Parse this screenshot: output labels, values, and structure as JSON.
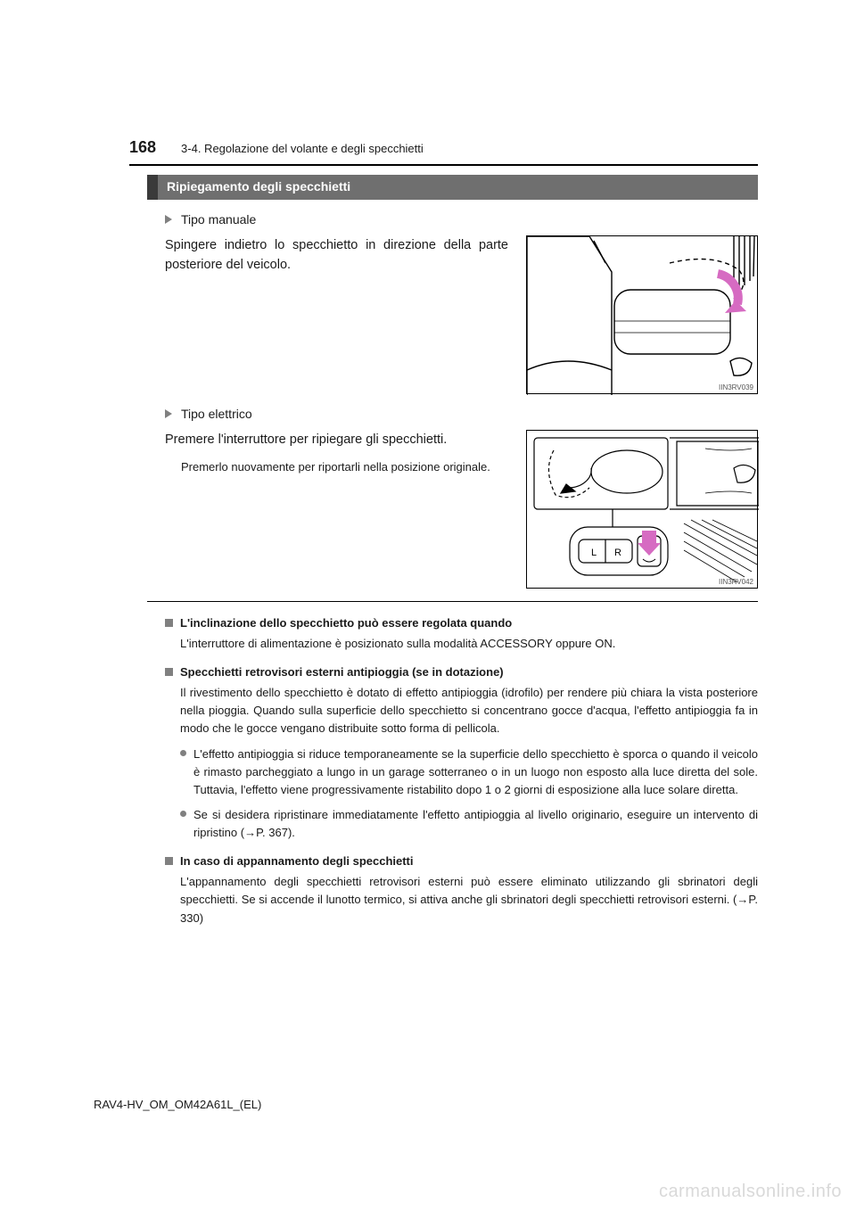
{
  "page": {
    "number": "168",
    "section_path": "3-4. Regolazione del volante e degli specchietti",
    "footer_code": "RAV4-HV_OM_OM42A61L_(EL)",
    "watermark": "carmanualsonline.info"
  },
  "heading": {
    "title": "Ripiegamento degli specchietti"
  },
  "block1": {
    "type_label": "Tipo manuale",
    "text": "Spingere indietro lo specchietto in direzione della parte posteriore del veicolo.",
    "fig_code": "IIN3RV039"
  },
  "block2": {
    "type_label": "Tipo elettrico",
    "text": "Premere l'interruttore per ripiegare gli specchietti.",
    "subtext": "Premerlo nuovamente per riportarli nella posizione originale.",
    "fig_code": "IIN3RV042"
  },
  "notes": [
    {
      "title": "L'inclinazione dello specchietto può essere regolata quando",
      "body": "L'interruttore di alimentazione è posizionato sulla modalità ACCESSORY oppure ON.",
      "bullets": []
    },
    {
      "title": "Specchietti retrovisori esterni antipioggia (se in dotazione)",
      "body": "Il rivestimento dello specchietto è dotato di effetto antipioggia (idrofilo) per rendere più chiara la vista posteriore nella pioggia. Quando sulla superficie dello specchietto si concentrano gocce d'acqua, l'effetto antipioggia fa in modo che le gocce vengano distribuite sotto forma di pellicola.",
      "bullets": [
        "L'effetto antipioggia si riduce temporaneamente se la superficie dello specchietto è sporca o quando il veicolo è rimasto parcheggiato a lungo in un garage sotterraneo o in un luogo non esposto alla luce diretta del sole. Tuttavia, l'effetto viene progressivamente ristabilito dopo 1 o 2 giorni di esposizione alla luce solare diretta.",
        "Se si desidera ripristinare immediatamente l'effetto antipioggia al livello originario, eseguire un intervento di ripristino (→P. 367)."
      ]
    },
    {
      "title": "In caso di appannamento degli specchietti",
      "body": "L'appannamento degli specchietti retrovisori esterni può essere eliminato utilizzando gli sbrinatori degli specchietti. Se si accende il lunotto termico, si attiva anche gli sbrinatori degli specchietti retrovisori esterni. (→P. 330)",
      "bullets": []
    }
  ],
  "figures": {
    "fig1": {
      "arrow_color": "#d66bc2",
      "line_color": "#000000"
    },
    "fig2": {
      "arrow_color": "#d66bc2",
      "line_color": "#000000",
      "button_labels": {
        "left": "L",
        "right": "R"
      }
    }
  }
}
